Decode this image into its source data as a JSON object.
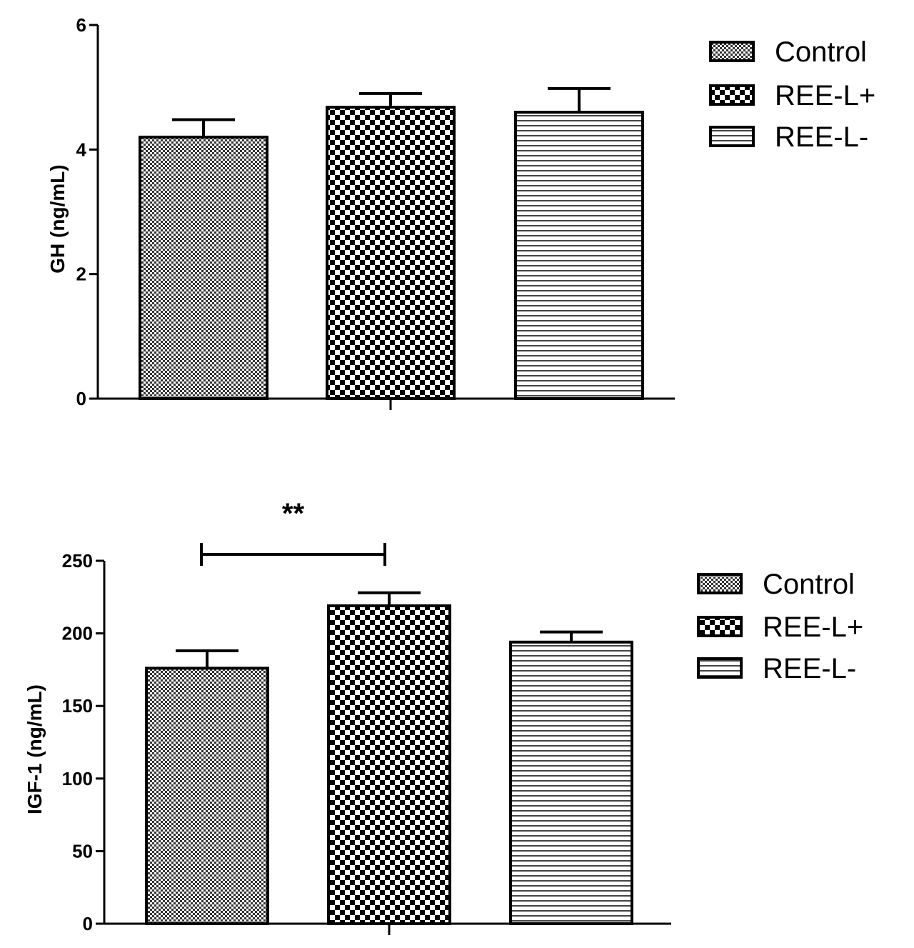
{
  "chart_data": [
    {
      "type": "bar",
      "title": "",
      "xlabel": "",
      "ylabel": "GH (ng/mL)",
      "ylim": [
        0,
        6
      ],
      "yticks": [
        0,
        2,
        4,
        6
      ],
      "categories": [
        "Control",
        "REE-L+",
        "REE-L-"
      ],
      "values": [
        4.2,
        4.68,
        4.6
      ],
      "errors": [
        0.28,
        0.22,
        0.38
      ],
      "patterns": [
        "fine-dots",
        "checker",
        "horizontal-lines"
      ],
      "legend": [
        "Control",
        "REE-L+",
        "REE-L-"
      ],
      "legend_position": "top-right",
      "significance": []
    },
    {
      "type": "bar",
      "title": "",
      "xlabel": "",
      "ylabel": "IGF-1 (ng/mL)",
      "ylim": [
        0,
        250
      ],
      "yticks": [
        0,
        50,
        100,
        150,
        200,
        250
      ],
      "categories": [
        "Control",
        "REE-L+",
        "REE-L-"
      ],
      "values": [
        176,
        219,
        194
      ],
      "errors": [
        12,
        9,
        7
      ],
      "patterns": [
        "fine-dots",
        "checker",
        "horizontal-lines"
      ],
      "legend": [
        "Control",
        "REE-L+",
        "REE-L-"
      ],
      "legend_position": "top-right",
      "significance": [
        {
          "from": 0,
          "to": 1,
          "label": "**"
        }
      ]
    }
  ]
}
